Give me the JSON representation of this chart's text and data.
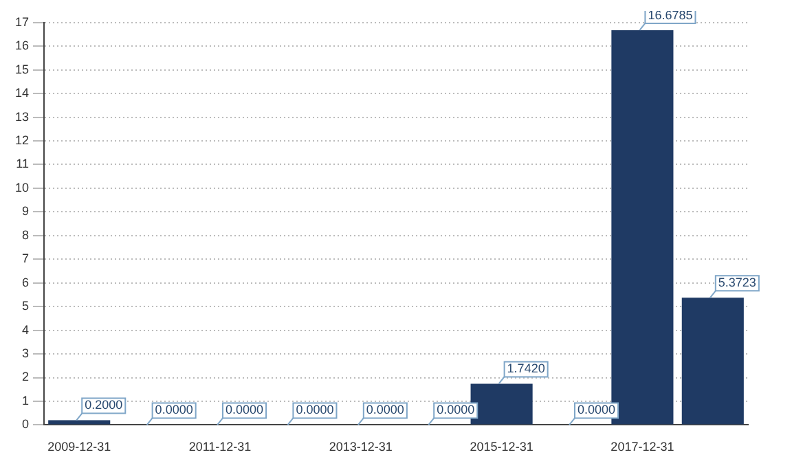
{
  "chart_data": {
    "type": "bar",
    "categories": [
      "2009-12-31",
      null,
      "2011-12-31",
      null,
      "2013-12-31",
      null,
      "2015-12-31",
      null,
      "2017-12-31",
      null
    ],
    "values": [
      0.2,
      0,
      0,
      0,
      0,
      0,
      1.742,
      0,
      16.6785,
      5.3723
    ],
    "value_labels": [
      "0.2000",
      "0.0000",
      "0.0000",
      "0.0000",
      "0.0000",
      "0.0000",
      "1.7420",
      "0.0000",
      "16.6785",
      "5.3723"
    ],
    "color": "#1f3a64",
    "ylim": [
      0,
      17
    ],
    "yticks": [
      0,
      1,
      2,
      3,
      4,
      5,
      6,
      7,
      8,
      9,
      10,
      11,
      12,
      13,
      14,
      15,
      16,
      17
    ],
    "grid": "y",
    "legend": false
  }
}
